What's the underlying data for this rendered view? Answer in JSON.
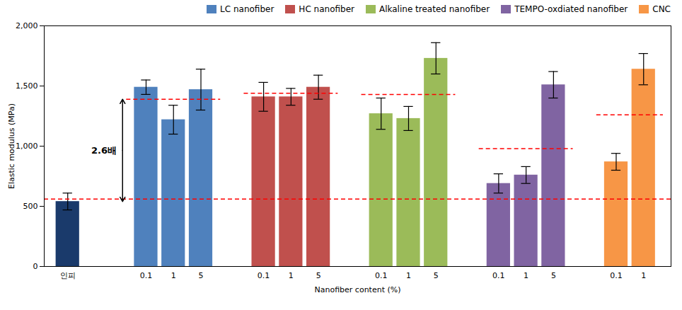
{
  "chart_data": {
    "type": "bar",
    "xlabel": "Nanofiber content (%)",
    "ylabel": "Elastic modulus (MPa)",
    "ylim": [
      0,
      2000
    ],
    "yticks": [
      0,
      500,
      1000,
      1500,
      2000
    ],
    "grid": false,
    "legend": "upper right",
    "baseline": {
      "category": "인피",
      "value": 540,
      "error": 70,
      "color": "#1a3a6b"
    },
    "series": [
      {
        "name": "LC nanofiber",
        "color": "#4f81bd",
        "categories": [
          "0.1",
          "1",
          "5"
        ],
        "values": [
          1490,
          1220,
          1470
        ],
        "errors": [
          60,
          120,
          170
        ],
        "dashed_y": 1390
      },
      {
        "name": "HC nanofiber",
        "color": "#c0504d",
        "categories": [
          "0.1",
          "1",
          "5"
        ],
        "values": [
          1410,
          1410,
          1490
        ],
        "errors": [
          120,
          70,
          100
        ],
        "dashed_y": 1440
      },
      {
        "name": "Alkaline treated nanofiber",
        "color": "#9bbb59",
        "categories": [
          "0.1",
          "1",
          "5"
        ],
        "values": [
          1270,
          1230,
          1730
        ],
        "errors": [
          130,
          100,
          130
        ],
        "dashed_y": 1430
      },
      {
        "name": "TEMPO-oxdiated nanofiber",
        "color": "#8064a2",
        "categories": [
          "0.1",
          "1",
          "5"
        ],
        "values": [
          690,
          760,
          1510
        ],
        "errors": [
          80,
          70,
          110
        ],
        "dashed_y": 980
      },
      {
        "name": "CNC",
        "color": "#f79646",
        "categories": [
          "0.1",
          "1"
        ],
        "values": [
          870,
          1640
        ],
        "errors": [
          70,
          130
        ],
        "dashed_y": 1260
      }
    ],
    "reference_line": {
      "y": 560,
      "color": "#ff0000",
      "line_style": "dashed"
    },
    "annotation": {
      "text": "2.6배",
      "y_from": 540,
      "y_to": 1390
    }
  }
}
